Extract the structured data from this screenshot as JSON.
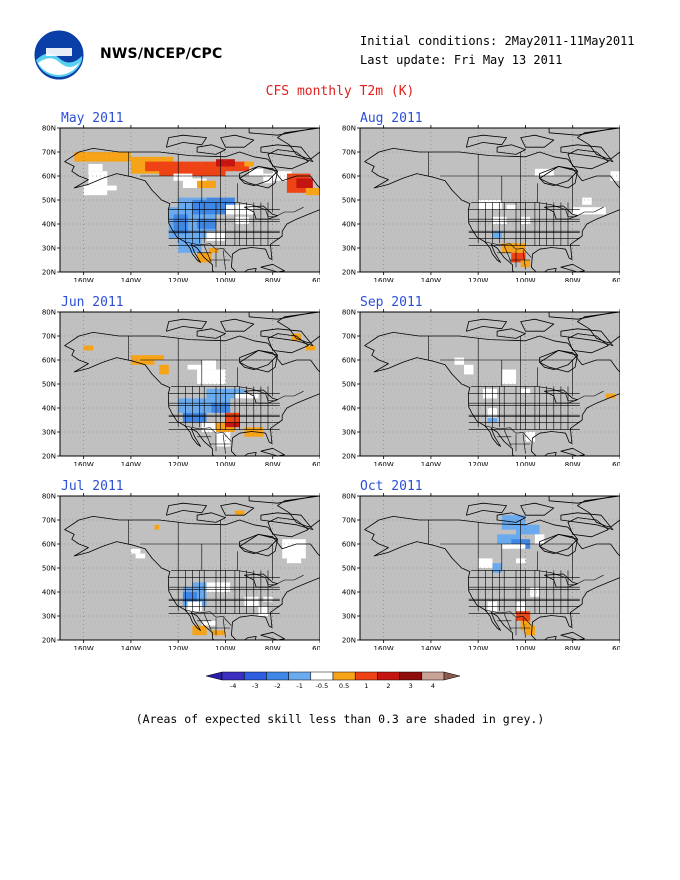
{
  "header": {
    "org": "NWS/NCEP/CPC",
    "initial_conditions": "Initial conditions: 2May2011-11May2011",
    "last_update": "Last update: Fri May 13 2011",
    "logo_icon": "noaa-logo-icon"
  },
  "title": "CFS monthly T2m (K)",
  "axes": {
    "lat_labels": [
      "80N",
      "70N",
      "60N",
      "50N",
      "40N",
      "30N",
      "20N"
    ],
    "lon_labels": [
      "160W",
      "140W",
      "120W",
      "100W",
      "80W",
      "60W"
    ]
  },
  "panels": [
    {
      "id": "may",
      "title": "May 2011"
    },
    {
      "id": "aug",
      "title": "Aug 2011"
    },
    {
      "id": "jun",
      "title": "Jun 2011"
    },
    {
      "id": "sep",
      "title": "Sep 2011"
    },
    {
      "id": "jul",
      "title": "Jul 2011"
    },
    {
      "id": "oct",
      "title": "Oct 2011"
    }
  ],
  "colorbar": {
    "labels": [
      "-4",
      "-3",
      "-2",
      "-1",
      "-0.5",
      "0.5",
      "1",
      "2",
      "3",
      "4"
    ],
    "colors": [
      "#3a2fbf",
      "#2f5ee0",
      "#3f87e6",
      "#6aaaee",
      "#ffffff",
      "#f7a318",
      "#ee4315",
      "#c41510",
      "#8f0c0c",
      "#c8a296"
    ],
    "low_color": "#2a1ea8",
    "high_color": "#8a5a4a"
  },
  "note": "(Areas of expected skill less than 0.3 are shaded in grey.)",
  "colors": {
    "grey_mask": "#c0c0c0",
    "title_red": "#e0201e",
    "panel_title_blue": "#2b4fd6"
  }
}
